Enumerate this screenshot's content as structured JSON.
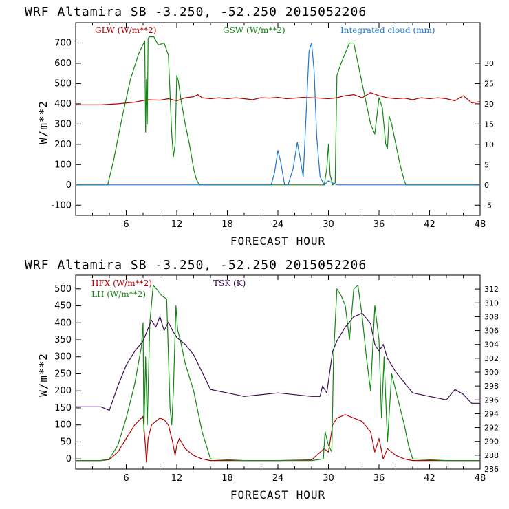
{
  "chart_data": [
    {
      "type": "line",
      "title": "WRF   Altamira   SB   -3.250,  -52.250   2015052206",
      "xlabel": "FORECAST HOUR",
      "ylabel": "W/m**2",
      "xlim": [
        0,
        48
      ],
      "ylim": [
        -150,
        800
      ],
      "y2lim": [
        -7.5,
        40
      ],
      "xticks": [
        "6",
        "12",
        "18",
        "24",
        "30",
        "36",
        "42",
        "48"
      ],
      "yticks": [
        "-100",
        "0",
        "100",
        "200",
        "300",
        "400",
        "500",
        "600",
        "700"
      ],
      "y2ticks": [
        "-5",
        "0",
        "5",
        "10",
        "15",
        "20",
        "25",
        "30"
      ],
      "legend": [
        "GLW (W/m**2)",
        "GSW (W/m**2)",
        "Integrated cloud (mm)"
      ],
      "colors": {
        "glw": "#b00000",
        "gsw": "#118811",
        "cloud": "#1e78d2"
      },
      "series": [
        {
          "name": "GLW (W/m**2)",
          "axis": "left",
          "color": "#b00000",
          "x": [
            0,
            3,
            5,
            7,
            8.5,
            10,
            11,
            12,
            13,
            14,
            14.5,
            15,
            16,
            17,
            18,
            19,
            20,
            21,
            22,
            23,
            24,
            25,
            26,
            27,
            28,
            29,
            30,
            31,
            32,
            33,
            34,
            35,
            36,
            37,
            38,
            39,
            40,
            41,
            42,
            43,
            44,
            45,
            46,
            47,
            48
          ],
          "values": [
            395,
            395,
            400,
            408,
            420,
            418,
            425,
            415,
            430,
            435,
            445,
            430,
            425,
            430,
            425,
            430,
            425,
            420,
            430,
            428,
            432,
            425,
            428,
            432,
            430,
            428,
            425,
            430,
            440,
            445,
            430,
            455,
            440,
            430,
            425,
            428,
            420,
            430,
            425,
            430,
            425,
            415,
            440,
            405,
            410
          ]
        },
        {
          "name": "GSW (W/m**2)",
          "axis": "left",
          "color": "#118811",
          "x": [
            0,
            3.8,
            4.5,
            5.5,
            6.5,
            7.5,
            8.2,
            8.3,
            8.4,
            8.5,
            8.6,
            8.7,
            9.0,
            9.3,
            9.4,
            9.8,
            10.5,
            11.0,
            11.4,
            11.6,
            11.8,
            12.0,
            12.2,
            12.5,
            13.0,
            13.5,
            14.0,
            14.3,
            14.6,
            15.0,
            29.5,
            29.8,
            30.0,
            30.2,
            30.5,
            30.8,
            31.0,
            31.5,
            32.5,
            33.0,
            33.5,
            34.0,
            34.5,
            35.0,
            35.5,
            36.0,
            36.4,
            36.8,
            37.0,
            37.2,
            37.5,
            38.0,
            38.5,
            39.0,
            39.2,
            48
          ],
          "values": [
            0,
            0,
            120,
            330,
            520,
            650,
            710,
            260,
            520,
            300,
            720,
            730,
            730,
            730,
            720,
            690,
            700,
            640,
            250,
            140,
            200,
            540,
            510,
            420,
            300,
            200,
            80,
            30,
            5,
            0,
            0,
            80,
            200,
            50,
            0,
            10,
            540,
            600,
            700,
            700,
            600,
            500,
            400,
            300,
            250,
            430,
            380,
            200,
            180,
            340,
            300,
            200,
            100,
            20,
            0,
            0
          ]
        },
        {
          "name": "Integrated cloud (mm)",
          "axis": "right",
          "color": "#1e78d2",
          "x": [
            0,
            23.2,
            23.6,
            24.0,
            24.3,
            24.8,
            25.2,
            25.8,
            26.3,
            26.6,
            27.0,
            27.3,
            27.7,
            28.0,
            28.3,
            28.6,
            29.0,
            29.5,
            30.0,
            30.5,
            31.0,
            48
          ],
          "values": [
            0,
            0,
            3,
            8.5,
            6,
            0,
            0,
            4,
            10.5,
            7,
            2,
            15,
            33,
            35,
            28,
            12,
            2,
            0,
            1,
            0.5,
            0,
            0
          ]
        }
      ]
    },
    {
      "type": "line",
      "title": "WRF   Altamira   SB   -3.250,  -52.250   2015052206",
      "xlabel": "FORECAST HOUR",
      "ylabel": "W/m**2",
      "xlim": [
        0,
        48
      ],
      "ylim": [
        -30,
        540
      ],
      "y2lim": [
        286,
        314
      ],
      "xticks": [
        "6",
        "12",
        "18",
        "24",
        "30",
        "36",
        "42",
        "48"
      ],
      "yticks": [
        "0",
        "50",
        "100",
        "150",
        "200",
        "250",
        "300",
        "350",
        "400",
        "450",
        "500"
      ],
      "y2ticks": [
        "286",
        "288",
        "290",
        "292",
        "294",
        "296",
        "298",
        "300",
        "302",
        "304",
        "306",
        "308",
        "310",
        "312"
      ],
      "legend": [
        "HFX (W/m**2)",
        "LH (W/m**2)",
        "TSK (K)"
      ],
      "colors": {
        "hfx": "#b00000",
        "lh": "#118811",
        "tsk": "#3c0a50"
      },
      "series": [
        {
          "name": "HFX (W/m**2)",
          "axis": "left",
          "color": "#b00000",
          "x": [
            0,
            3,
            4,
            5,
            6,
            7,
            8,
            8.3,
            8.4,
            8.6,
            9,
            9.5,
            10,
            10.5,
            11,
            11.5,
            11.8,
            12,
            12.3,
            13,
            14,
            15,
            16,
            20,
            24,
            28,
            29.5,
            30,
            30.5,
            31,
            32,
            33,
            34,
            35,
            35.5,
            36,
            36.5,
            37,
            38,
            39,
            40,
            44,
            48
          ],
          "values": [
            -5,
            -5,
            -2,
            20,
            60,
            100,
            125,
            30,
            -10,
            60,
            100,
            110,
            120,
            115,
            100,
            50,
            10,
            40,
            60,
            30,
            10,
            0,
            -5,
            -5,
            -5,
            -3,
            30,
            20,
            100,
            120,
            130,
            120,
            110,
            80,
            20,
            60,
            0,
            30,
            10,
            0,
            -5,
            -5,
            -5
          ]
        },
        {
          "name": "LH (W/m**2)",
          "axis": "left",
          "color": "#118811",
          "x": [
            0,
            3,
            4,
            5,
            6,
            7,
            7.8,
            8.0,
            8.1,
            8.3,
            8.5,
            8.8,
            9.2,
            9.6,
            10.2,
            10.8,
            11.2,
            11.4,
            11.6,
            11.9,
            12.1,
            12.5,
            13,
            14,
            15,
            16,
            20,
            24,
            28,
            29.4,
            29.6,
            30.0,
            30.4,
            30.6,
            31,
            31.5,
            32,
            32.5,
            33,
            33.5,
            34,
            34.5,
            35,
            35.5,
            36,
            36.3,
            36.6,
            37.0,
            37.5,
            38,
            38.5,
            39,
            39.5,
            40,
            44,
            48
          ],
          "values": [
            -5,
            -5,
            0,
            40,
            120,
            220,
            330,
            400,
            80,
            300,
            100,
            400,
            510,
            500,
            480,
            470,
            150,
            100,
            200,
            450,
            380,
            340,
            280,
            200,
            80,
            0,
            -5,
            -5,
            -5,
            0,
            80,
            40,
            20,
            300,
            500,
            480,
            450,
            350,
            500,
            510,
            420,
            300,
            200,
            450,
            350,
            120,
            300,
            50,
            250,
            200,
            150,
            100,
            40,
            0,
            -5,
            -5
          ]
        },
        {
          "name": "TSK (K)",
          "axis": "right",
          "color": "#3c0a50",
          "x": [
            0,
            3,
            4,
            5,
            6,
            7,
            8,
            8.5,
            9,
            9.5,
            10,
            10.5,
            11,
            11.5,
            12,
            13,
            14,
            15,
            16,
            18,
            20,
            24,
            28,
            29,
            29.3,
            29.8,
            30.5,
            31,
            32,
            33,
            34,
            35,
            35.5,
            36,
            36.5,
            37,
            38,
            39,
            40,
            42,
            44,
            45,
            46,
            47,
            48
          ],
          "values": [
            295,
            295,
            294.5,
            298,
            301,
            303,
            304.5,
            306,
            307.5,
            306.5,
            308,
            306,
            307.2,
            306,
            305,
            304,
            302.5,
            300,
            297.5,
            297,
            296.5,
            297,
            296.5,
            296.5,
            298,
            297,
            303,
            304.5,
            306.5,
            308,
            308.5,
            307,
            304,
            303,
            304,
            302,
            300,
            298.5,
            297,
            296.5,
            296,
            297.5,
            296.8,
            295.5,
            295.5
          ]
        }
      ]
    }
  ]
}
